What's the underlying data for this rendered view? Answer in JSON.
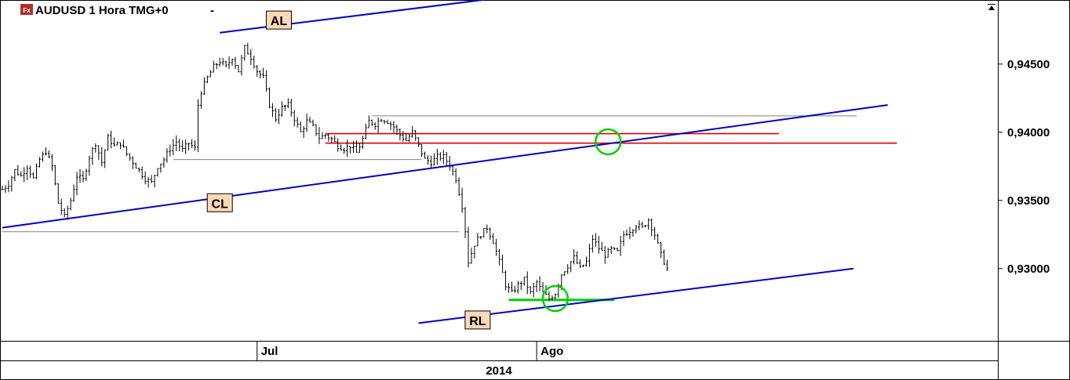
{
  "header": {
    "symbol_badge": "Fx",
    "title": "AUDUSD 1 Hora TMG+0",
    "dropdown_glyph": "-",
    "badge_color": "#b0302c"
  },
  "chart_data": {
    "type": "candlestick",
    "title": "AUDUSD 1 Hora TMG+0",
    "timeframe": "1 Hora",
    "ylim": [
      0.9247,
      0.9497
    ],
    "yticks": [
      {
        "value": 0.93,
        "label": "0,93000"
      },
      {
        "value": 0.935,
        "label": "0,93500"
      },
      {
        "value": 0.94,
        "label": "0,94000"
      },
      {
        "value": 0.945,
        "label": "0,94500"
      }
    ],
    "x_month_labels": [
      {
        "label": "Jul",
        "bar": 0
      },
      {
        "label": "Ago",
        "bar": 0
      }
    ],
    "x_year_label": "2014",
    "axis_position": "right",
    "grid": false,
    "price_path": [
      [
        0,
        0.9358
      ],
      [
        2,
        0.9362
      ],
      [
        4,
        0.9372
      ],
      [
        6,
        0.9368
      ],
      [
        8,
        0.9375
      ],
      [
        10,
        0.9366
      ],
      [
        12,
        0.938
      ],
      [
        14,
        0.9386
      ],
      [
        16,
        0.9375
      ],
      [
        18,
        0.9348
      ],
      [
        20,
        0.9338
      ],
      [
        22,
        0.935
      ],
      [
        24,
        0.9368
      ],
      [
        26,
        0.9365
      ],
      [
        28,
        0.9382
      ],
      [
        30,
        0.9392
      ],
      [
        32,
        0.9378
      ],
      [
        34,
        0.9396
      ],
      [
        36,
        0.939
      ],
      [
        38,
        0.9392
      ],
      [
        40,
        0.9384
      ],
      [
        42,
        0.9378
      ],
      [
        44,
        0.9372
      ],
      [
        46,
        0.9366
      ],
      [
        48,
        0.9363
      ],
      [
        50,
        0.9375
      ],
      [
        52,
        0.938
      ],
      [
        54,
        0.9388
      ],
      [
        56,
        0.9393
      ],
      [
        58,
        0.9387
      ],
      [
        60,
        0.9392
      ],
      [
        62,
        0.9388
      ],
      [
        63,
        0.942
      ],
      [
        64,
        0.943
      ],
      [
        66,
        0.944
      ],
      [
        68,
        0.9448
      ],
      [
        70,
        0.9452
      ],
      [
        72,
        0.9448
      ],
      [
        74,
        0.9455
      ],
      [
        76,
        0.9445
      ],
      [
        78,
        0.9462
      ],
      [
        80,
        0.9455
      ],
      [
        82,
        0.9445
      ],
      [
        84,
        0.944
      ],
      [
        86,
        0.942
      ],
      [
        88,
        0.941
      ],
      [
        90,
        0.9418
      ],
      [
        92,
        0.942
      ],
      [
        94,
        0.941
      ],
      [
        96,
        0.94
      ],
      [
        98,
        0.9408
      ],
      [
        100,
        0.9404
      ],
      [
        102,
        0.9396
      ],
      [
        104,
        0.9398
      ],
      [
        106,
        0.9395
      ],
      [
        108,
        0.939
      ],
      [
        110,
        0.9388
      ],
      [
        112,
        0.939
      ],
      [
        114,
        0.9385
      ],
      [
        116,
        0.9395
      ],
      [
        118,
        0.9408
      ],
      [
        120,
        0.9406
      ],
      [
        122,
        0.941
      ],
      [
        124,
        0.9408
      ],
      [
        126,
        0.9404
      ],
      [
        128,
        0.9398
      ],
      [
        130,
        0.9394
      ],
      [
        132,
        0.94
      ],
      [
        134,
        0.939
      ],
      [
        136,
        0.938
      ],
      [
        138,
        0.9378
      ],
      [
        140,
        0.9382
      ],
      [
        142,
        0.9382
      ],
      [
        144,
        0.9376
      ],
      [
        146,
        0.9366
      ],
      [
        148,
        0.9346
      ],
      [
        149,
        0.9328
      ],
      [
        150,
        0.9305
      ],
      [
        152,
        0.9318
      ],
      [
        154,
        0.9325
      ],
      [
        156,
        0.933
      ],
      [
        158,
        0.932
      ],
      [
        160,
        0.9305
      ],
      [
        162,
        0.9288
      ],
      [
        164,
        0.9282
      ],
      [
        166,
        0.9288
      ],
      [
        168,
        0.9292
      ],
      [
        170,
        0.9282
      ],
      [
        172,
        0.929
      ],
      [
        174,
        0.9282
      ],
      [
        176,
        0.9278
      ],
      [
        178,
        0.9282
      ],
      [
        180,
        0.9296
      ],
      [
        182,
        0.9302
      ],
      [
        184,
        0.9308
      ],
      [
        186,
        0.93
      ],
      [
        188,
        0.9305
      ],
      [
        190,
        0.9322
      ],
      [
        192,
        0.9315
      ],
      [
        194,
        0.931
      ],
      [
        196,
        0.9314
      ],
      [
        198,
        0.9312
      ],
      [
        200,
        0.9325
      ],
      [
        202,
        0.9328
      ],
      [
        204,
        0.9332
      ],
      [
        206,
        0.933
      ],
      [
        208,
        0.9336
      ],
      [
        210,
        0.9325
      ],
      [
        212,
        0.931
      ],
      [
        214,
        0.93
      ]
    ],
    "bar_count": 215,
    "trend_lines": [
      {
        "name": "AL",
        "color": "#0000c8",
        "from": [
          70,
          0.9473
        ],
        "to": [
          165,
          0.95
        ]
      },
      {
        "name": "CL",
        "color": "#0000c8",
        "from": [
          0,
          0.933
        ],
        "to": [
          285,
          0.942
        ]
      },
      {
        "name": "RL",
        "color": "#0000c8",
        "from": [
          134,
          0.926
        ],
        "to": [
          274,
          0.93
        ]
      }
    ],
    "horizontal_levels": [
      {
        "color": "#e00000",
        "value": 0.9392,
        "from_bar": 104,
        "to_bar": 288
      },
      {
        "color": "#e00000",
        "value": 0.9399,
        "from_bar": 104,
        "to_bar": 250
      },
      {
        "color": "#808080",
        "value": 0.9412,
        "from_bar": 119,
        "to_bar": 275
      },
      {
        "color": "#808080",
        "value": 0.938,
        "from_bar": 55,
        "to_bar": 135
      },
      {
        "color": "#808080",
        "value": 0.9327,
        "from_bar": 0,
        "to_bar": 147
      },
      {
        "color": "#00d000",
        "value": 0.9277,
        "from_bar": 163,
        "to_bar": 197
      }
    ],
    "line_notes": [
      {
        "label": "AL",
        "bar": 89,
        "value": 0.9482
      },
      {
        "label": "CL",
        "bar": 70,
        "value": 0.9348
      },
      {
        "label": "RL",
        "bar": 153,
        "value": 0.9262
      }
    ],
    "highlight_circles": [
      {
        "bar": 195,
        "value": 0.9393,
        "color": "#00d000"
      },
      {
        "bar": 178,
        "value": 0.9278,
        "color": "#00d000"
      }
    ]
  }
}
